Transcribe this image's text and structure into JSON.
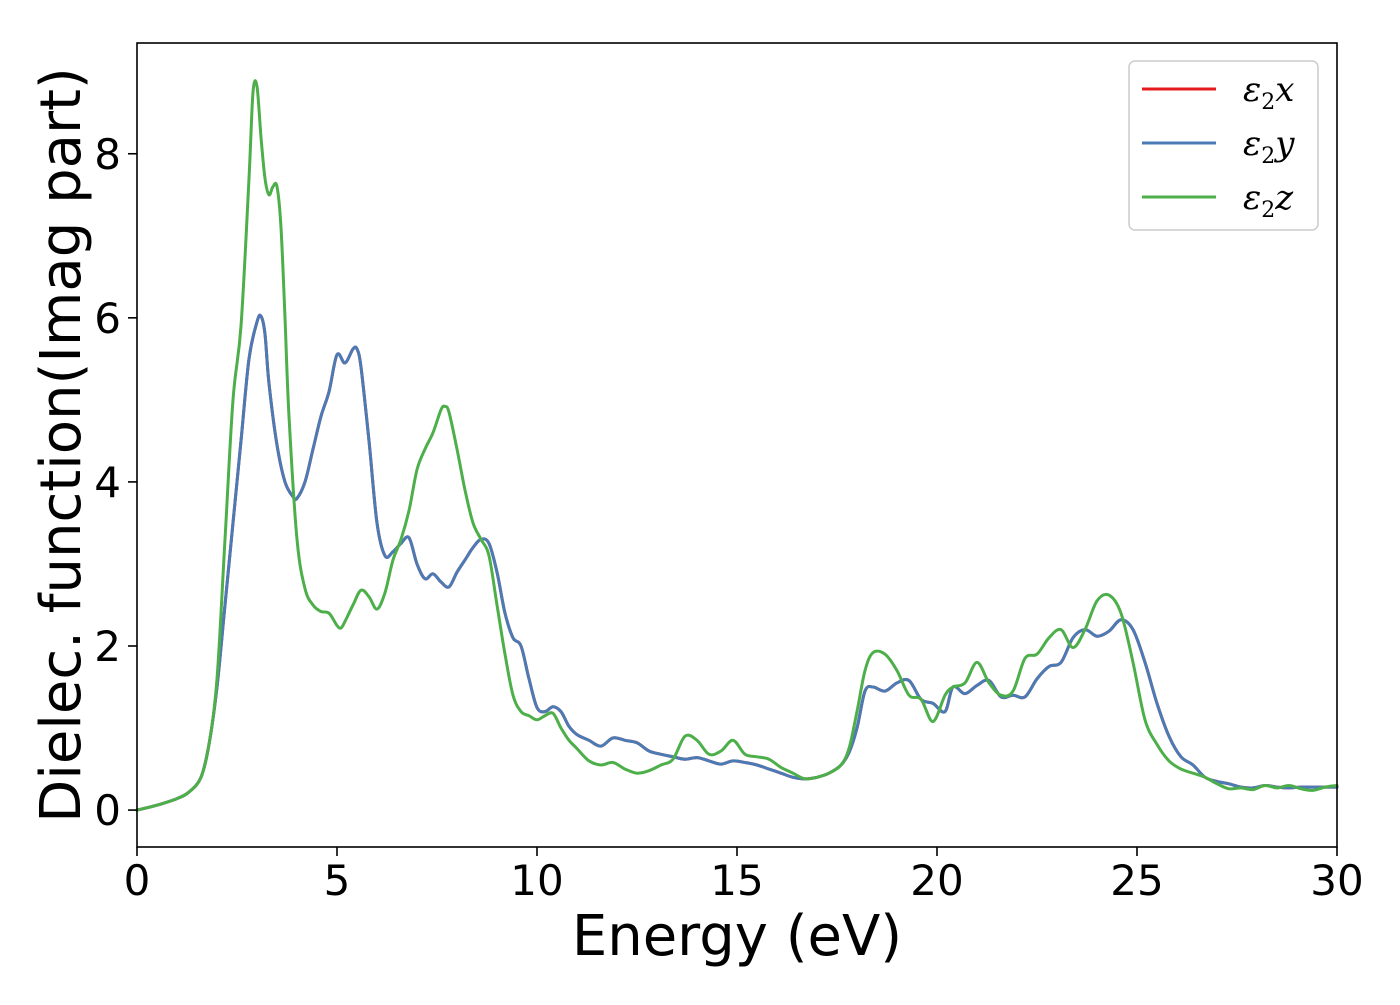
{
  "chart_data": {
    "type": "line",
    "xlabel": "Energy (eV)",
    "ylabel": "Dielec. function(Imag part)",
    "xlim": [
      0,
      30
    ],
    "ylim": [
      -0.45,
      9.35
    ],
    "x_ticks": [
      "0",
      "5",
      "10",
      "15",
      "20",
      "25",
      "30"
    ],
    "y_ticks": [
      "0",
      "2",
      "4",
      "6",
      "8"
    ],
    "grid": false,
    "legend_position": "top-right",
    "series": [
      {
        "name": "ε2x",
        "label_base": "ε",
        "label_sub": "2",
        "label_var": "x",
        "color": "#e41a1c",
        "x": [
          0,
          0.5,
          1.0,
          1.3,
          1.6,
          1.8,
          2.0,
          2.2,
          2.4,
          2.6,
          2.8,
          3.0,
          3.1,
          3.2,
          3.3,
          3.5,
          3.7,
          3.9,
          4.0,
          4.2,
          4.4,
          4.6,
          4.8,
          5.0,
          5.2,
          5.4,
          5.5,
          5.6,
          5.8,
          6.0,
          6.2,
          6.4,
          6.6,
          6.8,
          7.0,
          7.2,
          7.4,
          7.6,
          7.8,
          8.0,
          8.2,
          8.4,
          8.6,
          8.8,
          9.0,
          9.2,
          9.4,
          9.6,
          9.8,
          10.0,
          10.2,
          10.4,
          10.6,
          10.8,
          11.0,
          11.3,
          11.6,
          11.9,
          12.2,
          12.5,
          12.8,
          13.1,
          13.4,
          13.7,
          14.0,
          14.3,
          14.6,
          14.9,
          15.2,
          15.5,
          15.8,
          16.1,
          16.4,
          16.7,
          17.0,
          17.3,
          17.6,
          17.8,
          18.0,
          18.2,
          18.4,
          18.7,
          19.0,
          19.3,
          19.6,
          19.9,
          20.2,
          20.4,
          20.7,
          21.0,
          21.3,
          21.6,
          21.9,
          22.2,
          22.5,
          22.8,
          23.1,
          23.4,
          23.7,
          24.0,
          24.3,
          24.6,
          24.9,
          25.2,
          25.5,
          25.8,
          26.1,
          26.4,
          26.7,
          27.0,
          27.3,
          27.6,
          27.9,
          28.2,
          28.5,
          28.8,
          29.1,
          29.4,
          29.7,
          30.0
        ],
        "y": [
          0,
          0.06,
          0.14,
          0.22,
          0.4,
          0.8,
          1.5,
          2.5,
          3.5,
          4.5,
          5.5,
          5.95,
          6.02,
          5.8,
          5.2,
          4.45,
          4.0,
          3.82,
          3.8,
          4.0,
          4.4,
          4.8,
          5.1,
          5.55,
          5.45,
          5.62,
          5.62,
          5.4,
          4.5,
          3.5,
          3.1,
          3.15,
          3.25,
          3.32,
          3.0,
          2.82,
          2.88,
          2.78,
          2.72,
          2.9,
          3.05,
          3.2,
          3.3,
          3.25,
          2.9,
          2.4,
          2.1,
          2.0,
          1.6,
          1.25,
          1.2,
          1.26,
          1.2,
          1.02,
          0.92,
          0.85,
          0.78,
          0.88,
          0.85,
          0.82,
          0.72,
          0.68,
          0.65,
          0.62,
          0.64,
          0.6,
          0.56,
          0.6,
          0.58,
          0.55,
          0.5,
          0.45,
          0.4,
          0.38,
          0.4,
          0.45,
          0.55,
          0.7,
          1.0,
          1.45,
          1.5,
          1.45,
          1.55,
          1.58,
          1.35,
          1.3,
          1.2,
          1.5,
          1.42,
          1.52,
          1.58,
          1.38,
          1.4,
          1.38,
          1.6,
          1.75,
          1.8,
          2.1,
          2.2,
          2.12,
          2.18,
          2.32,
          2.2,
          1.8,
          1.3,
          0.9,
          0.65,
          0.55,
          0.4,
          0.35,
          0.32,
          0.28,
          0.27,
          0.3,
          0.28,
          0.27,
          0.28,
          0.28,
          0.28,
          0.28
        ]
      },
      {
        "name": "ε2y",
        "label_base": "ε",
        "label_sub": "2",
        "label_var": "y",
        "color": "#4a7bb5",
        "x": [
          0,
          0.5,
          1.0,
          1.3,
          1.6,
          1.8,
          2.0,
          2.2,
          2.4,
          2.6,
          2.8,
          3.0,
          3.1,
          3.2,
          3.3,
          3.5,
          3.7,
          3.9,
          4.0,
          4.2,
          4.4,
          4.6,
          4.8,
          5.0,
          5.2,
          5.4,
          5.5,
          5.6,
          5.8,
          6.0,
          6.2,
          6.4,
          6.6,
          6.8,
          7.0,
          7.2,
          7.4,
          7.6,
          7.8,
          8.0,
          8.2,
          8.4,
          8.6,
          8.8,
          9.0,
          9.2,
          9.4,
          9.6,
          9.8,
          10.0,
          10.2,
          10.4,
          10.6,
          10.8,
          11.0,
          11.3,
          11.6,
          11.9,
          12.2,
          12.5,
          12.8,
          13.1,
          13.4,
          13.7,
          14.0,
          14.3,
          14.6,
          14.9,
          15.2,
          15.5,
          15.8,
          16.1,
          16.4,
          16.7,
          17.0,
          17.3,
          17.6,
          17.8,
          18.0,
          18.2,
          18.4,
          18.7,
          19.0,
          19.3,
          19.6,
          19.9,
          20.2,
          20.4,
          20.7,
          21.0,
          21.3,
          21.6,
          21.9,
          22.2,
          22.5,
          22.8,
          23.1,
          23.4,
          23.7,
          24.0,
          24.3,
          24.6,
          24.9,
          25.2,
          25.5,
          25.8,
          26.1,
          26.4,
          26.7,
          27.0,
          27.3,
          27.6,
          27.9,
          28.2,
          28.5,
          28.8,
          29.1,
          29.4,
          29.7,
          30.0
        ],
        "y": [
          0,
          0.06,
          0.14,
          0.22,
          0.4,
          0.8,
          1.5,
          2.5,
          3.5,
          4.5,
          5.5,
          5.95,
          6.02,
          5.8,
          5.2,
          4.45,
          4.0,
          3.82,
          3.8,
          4.0,
          4.4,
          4.8,
          5.1,
          5.55,
          5.45,
          5.62,
          5.62,
          5.4,
          4.5,
          3.5,
          3.1,
          3.15,
          3.25,
          3.32,
          3.0,
          2.82,
          2.88,
          2.78,
          2.72,
          2.9,
          3.05,
          3.2,
          3.3,
          3.25,
          2.9,
          2.4,
          2.1,
          2.0,
          1.6,
          1.25,
          1.2,
          1.26,
          1.2,
          1.02,
          0.92,
          0.85,
          0.78,
          0.88,
          0.85,
          0.82,
          0.72,
          0.68,
          0.65,
          0.62,
          0.64,
          0.6,
          0.56,
          0.6,
          0.58,
          0.55,
          0.5,
          0.45,
          0.4,
          0.38,
          0.4,
          0.45,
          0.55,
          0.7,
          1.0,
          1.45,
          1.5,
          1.45,
          1.55,
          1.58,
          1.35,
          1.3,
          1.2,
          1.5,
          1.42,
          1.52,
          1.58,
          1.38,
          1.4,
          1.38,
          1.6,
          1.75,
          1.8,
          2.1,
          2.2,
          2.12,
          2.18,
          2.32,
          2.2,
          1.8,
          1.3,
          0.9,
          0.65,
          0.55,
          0.4,
          0.35,
          0.32,
          0.28,
          0.27,
          0.3,
          0.28,
          0.27,
          0.28,
          0.28,
          0.28,
          0.28
        ]
      },
      {
        "name": "ε2z",
        "label_base": "ε",
        "label_sub": "2",
        "label_var": "z",
        "color": "#4daf4a",
        "x": [
          0,
          0.5,
          1.0,
          1.3,
          1.6,
          1.8,
          2.0,
          2.2,
          2.4,
          2.6,
          2.8,
          2.9,
          3.0,
          3.1,
          3.2,
          3.3,
          3.4,
          3.5,
          3.6,
          3.7,
          3.8,
          4.0,
          4.2,
          4.4,
          4.6,
          4.8,
          5.0,
          5.1,
          5.2,
          5.4,
          5.6,
          5.8,
          6.0,
          6.2,
          6.4,
          6.6,
          6.8,
          7.0,
          7.2,
          7.4,
          7.6,
          7.7,
          7.8,
          8.0,
          8.2,
          8.4,
          8.6,
          8.8,
          9.0,
          9.2,
          9.4,
          9.6,
          9.8,
          10.0,
          10.2,
          10.4,
          10.6,
          10.8,
          11.0,
          11.3,
          11.6,
          11.9,
          12.2,
          12.5,
          12.8,
          13.1,
          13.4,
          13.7,
          14.0,
          14.3,
          14.6,
          14.9,
          15.2,
          15.5,
          15.8,
          16.1,
          16.4,
          16.7,
          17.0,
          17.3,
          17.6,
          17.8,
          18.0,
          18.2,
          18.4,
          18.7,
          19.0,
          19.3,
          19.6,
          19.9,
          20.2,
          20.4,
          20.7,
          21.0,
          21.3,
          21.6,
          21.9,
          22.2,
          22.5,
          22.8,
          23.1,
          23.4,
          23.7,
          24.0,
          24.3,
          24.6,
          24.9,
          25.2,
          25.5,
          25.8,
          26.1,
          26.4,
          26.7,
          27.0,
          27.3,
          27.6,
          27.9,
          28.2,
          28.5,
          28.8,
          29.1,
          29.4,
          29.7,
          30.0
        ],
        "y": [
          0,
          0.06,
          0.14,
          0.22,
          0.4,
          0.8,
          1.6,
          3.3,
          5.0,
          5.9,
          7.7,
          8.75,
          8.82,
          8.2,
          7.7,
          7.5,
          7.6,
          7.6,
          7.1,
          6.0,
          4.8,
          3.3,
          2.7,
          2.5,
          2.42,
          2.4,
          2.25,
          2.22,
          2.3,
          2.5,
          2.68,
          2.6,
          2.45,
          2.65,
          3.05,
          3.3,
          3.65,
          4.15,
          4.4,
          4.6,
          4.88,
          4.92,
          4.85,
          4.4,
          3.9,
          3.5,
          3.3,
          3.1,
          2.5,
          1.9,
          1.4,
          1.2,
          1.15,
          1.1,
          1.15,
          1.18,
          1.0,
          0.85,
          0.75,
          0.6,
          0.55,
          0.58,
          0.5,
          0.45,
          0.48,
          0.55,
          0.62,
          0.9,
          0.85,
          0.68,
          0.72,
          0.85,
          0.68,
          0.65,
          0.62,
          0.52,
          0.45,
          0.38,
          0.4,
          0.45,
          0.55,
          0.75,
          1.2,
          1.7,
          1.92,
          1.9,
          1.7,
          1.4,
          1.35,
          1.08,
          1.4,
          1.5,
          1.55,
          1.8,
          1.55,
          1.4,
          1.45,
          1.85,
          1.9,
          2.1,
          2.2,
          1.98,
          2.2,
          2.55,
          2.62,
          2.4,
          1.8,
          1.1,
          0.8,
          0.6,
          0.5,
          0.45,
          0.4,
          0.32,
          0.26,
          0.27,
          0.25,
          0.3,
          0.27,
          0.3,
          0.26,
          0.24,
          0.28,
          0.3
        ]
      }
    ]
  }
}
